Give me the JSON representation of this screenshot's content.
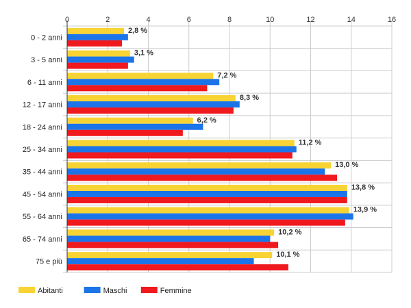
{
  "chart_data": {
    "type": "bar",
    "orientation": "horizontal",
    "title": "",
    "xlabel": "",
    "ylabel": "",
    "xlim": [
      0,
      16
    ],
    "x_ticks": [
      "0",
      "2",
      "4",
      "6",
      "8",
      "10",
      "12",
      "14",
      "16"
    ],
    "x_tick_values": [
      0,
      2,
      4,
      6,
      8,
      10,
      12,
      14,
      16
    ],
    "grid": true,
    "legend_position": "bottom-left",
    "categories": [
      "0 - 2 anni",
      "3 - 5 anni",
      "6 - 11 anni",
      "12 - 17 anni",
      "18 - 24 anni",
      "25 - 34 anni",
      "35 - 44 anni",
      "45 - 54 anni",
      "55 - 64 anni",
      "65 - 74 anni",
      "75 e più"
    ],
    "series": [
      {
        "name": "Abitanti",
        "color": "#f7d334",
        "values": [
          2.8,
          3.1,
          7.2,
          8.3,
          6.2,
          11.2,
          13.0,
          13.8,
          13.9,
          10.2,
          10.1
        ]
      },
      {
        "name": "Maschi",
        "color": "#1c74e9",
        "values": [
          3.0,
          3.3,
          7.5,
          8.5,
          6.7,
          11.3,
          12.7,
          13.8,
          14.1,
          10.0,
          9.2
        ]
      },
      {
        "name": "Femmine",
        "color": "#f0191e",
        "values": [
          2.7,
          3.0,
          6.9,
          8.2,
          5.7,
          11.1,
          13.3,
          13.8,
          13.7,
          10.4,
          10.9
        ]
      }
    ],
    "data_labels": [
      "2,8 %",
      "3,1 %",
      "7,2 %",
      "8,3 %",
      "6,2 %",
      "11,2 %",
      "13,0 %",
      "13,8 %",
      "13,9 %",
      "10,2 %",
      "10,1 %"
    ]
  }
}
